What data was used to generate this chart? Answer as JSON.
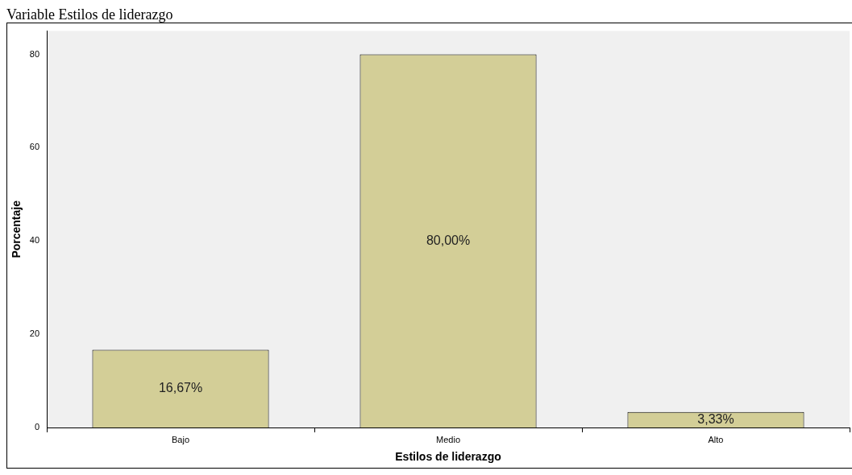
{
  "chart_data": {
    "type": "bar",
    "title": "Variable Estilos de liderazgo",
    "xlabel": "Estilos de liderazgo",
    "ylabel": "Porcentaje",
    "categories": [
      "Bajo",
      "Medio",
      "Alto"
    ],
    "values": [
      16.67,
      80,
      3.33
    ],
    "value_labels": [
      "16,67%",
      "80,00%",
      "3,33%"
    ],
    "color": "#d3ce97",
    "ylim": [
      0,
      85
    ],
    "yticks": [
      0,
      20,
      40,
      60,
      80
    ],
    "grid": false,
    "legend": false
  }
}
